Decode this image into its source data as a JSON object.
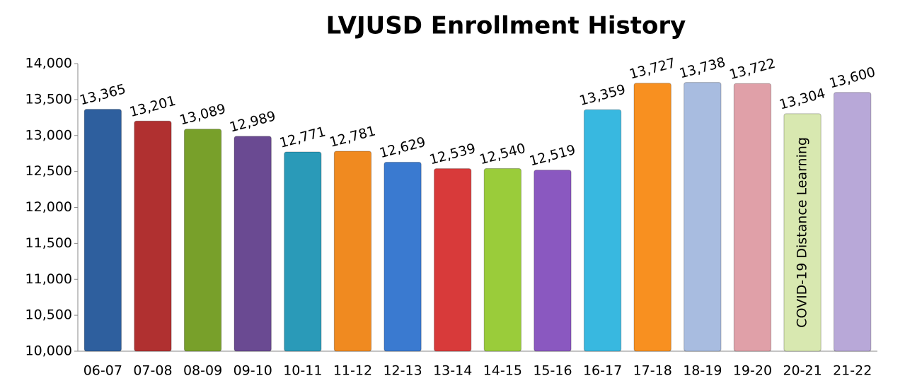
{
  "chart_data": {
    "type": "bar",
    "title": "LVJUSD Enrollment History",
    "categories": [
      "06-07",
      "07-08",
      "08-09",
      "09-10",
      "10-11",
      "11-12",
      "12-13",
      "13-14",
      "14-15",
      "15-16",
      "16-17",
      "17-18",
      "18-19",
      "19-20",
      "20-21",
      "21-22"
    ],
    "values": [
      13365,
      13201,
      13089,
      12989,
      12771,
      12781,
      12629,
      12539,
      12540,
      12519,
      13359,
      13727,
      13738,
      13722,
      13304,
      13600
    ],
    "value_labels": [
      "13,365",
      "13,201",
      "13,089",
      "12,989",
      "12,771",
      "12,781",
      "12,629",
      "12,539",
      "12,540",
      "12,519",
      "13,359",
      "13,727",
      "13,738",
      "13,722",
      "13,304",
      "13,600"
    ],
    "colors": [
      "#2e5f9e",
      "#b03030",
      "#78a02a",
      "#6a4a92",
      "#2a9ab8",
      "#f08a20",
      "#3a7ad0",
      "#d83a3a",
      "#9acc3a",
      "#8a58c0",
      "#38b8e0",
      "#f89020",
      "#a8bce0",
      "#e0a0a8",
      "#d8e8b0",
      "#b8a8d8"
    ],
    "annotation": "COVID-19 Distance Learning",
    "ylim": [
      10000,
      14000
    ],
    "yticks": [
      {
        "value": 10000,
        "label": "10,000"
      },
      {
        "value": 10500,
        "label": "10,500"
      },
      {
        "value": 11000,
        "label": "11,000"
      },
      {
        "value": 11500,
        "label": "11,500"
      },
      {
        "value": 12000,
        "label": "12,000"
      },
      {
        "value": 12500,
        "label": "12,500"
      },
      {
        "value": 13000,
        "label": "13,000"
      },
      {
        "value": 13500,
        "label": "13,500"
      },
      {
        "value": 14000,
        "label": "14,000"
      }
    ],
    "grid": false
  }
}
